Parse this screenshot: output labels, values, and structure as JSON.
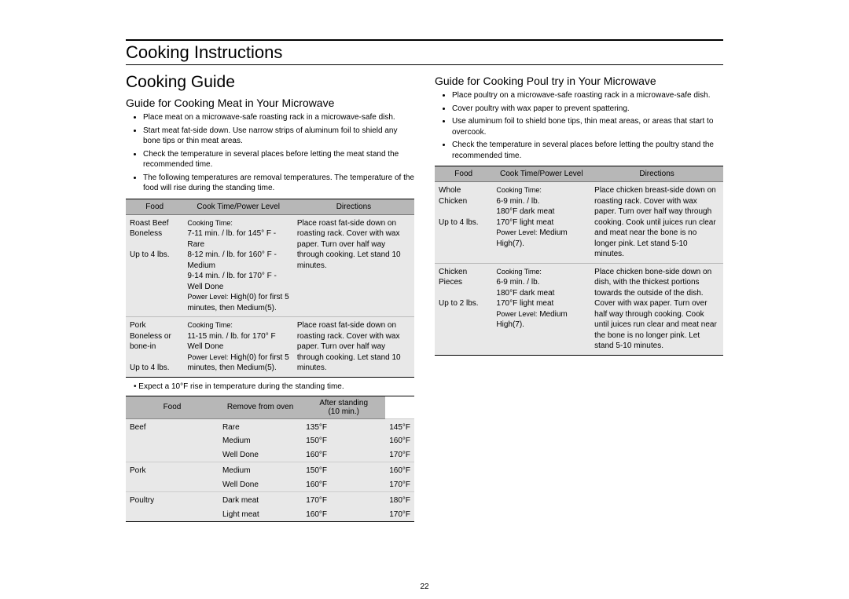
{
  "page": {
    "title": "Cooking Instructions",
    "pagenum": "22"
  },
  "left": {
    "heading": "Cooking Guide",
    "subheading": "Guide for Cooking Meat   in Your Microwave",
    "bullets": [
      "Place meat on a microwave-safe roasting rack in a microwave-safe dish.",
      "Start meat fat-side down. Use narrow strips of aluminum foil to shield any bone tips or thin meat areas.",
      "Check the temperature in several places before letting the meat stand the recommended time.",
      "The following temperatures are removal temperatures. The temperature of the food will rise during the standing time."
    ],
    "table1": {
      "headers": [
        "Food",
        "Cook Time/Power Level",
        "Directions"
      ],
      "rows": [
        {
          "food": "Roast Beef Boneless\n\nUp to 4 lbs.",
          "cook_label1": "Cooking Time:",
          "cook_body": "7-11 min. / lb. for 145° F - Rare\n8-12 min. / lb. for 160° F - Medium\n9-14 min. / lb. for 170° F - Well Done",
          "cook_label2": "Power Level:",
          "cook_power": "High(0) for first 5 minutes, then Medium(5).",
          "dir": "Place roast fat-side down on roasting rack. Cover with wax paper. Turn over  half way through cooking. Let stand 10 minutes."
        },
        {
          "food": "Pork Boneless or bone-in\n\nUp to 4 lbs.",
          "cook_label1": "Cooking Time:",
          "cook_body": "11-15 min. / lb. for 170° F Well Done",
          "cook_label2": "Power Level:",
          "cook_power": "High(0) for first 5 minutes, then Medium(5).",
          "dir": "Place roast fat-side down on roasting rack. Cover with wax paper. Turn over  half way through cooking. Let stand 10 minutes."
        }
      ]
    },
    "note": "Expect a 10°F rise in temperature during the standing time.",
    "table2": {
      "headers": [
        "Food",
        "Remove from oven",
        "After standing (10 min.)"
      ],
      "groups": [
        {
          "name": "Beef",
          "rows": [
            [
              "Rare",
              "135°F",
              "145°F"
            ],
            [
              "Medium",
              "150°F",
              "160°F"
            ],
            [
              "Well Done",
              "160°F",
              "170°F"
            ]
          ]
        },
        {
          "name": "Pork",
          "rows": [
            [
              "Medium",
              "150°F",
              "160°F"
            ],
            [
              "Well Done",
              "160°F",
              "170°F"
            ]
          ]
        },
        {
          "name": "Poultry",
          "rows": [
            [
              "Dark meat",
              "170°F",
              "180°F"
            ],
            [
              "Light meat",
              "160°F",
              "170°F"
            ]
          ]
        }
      ]
    }
  },
  "right": {
    "subheading": "Guide for Cooking Poul   try in Your Microwave",
    "bullets": [
      "Place poultry on a microwave-safe roasting rack in a microwave-safe dish.",
      "Cover poultry with wax paper to prevent spattering.",
      "Use aluminum foil to shield bone tips, thin meat areas, or areas that start to overcook.",
      "Check the temperature in several places before letting the poultry stand the recommended time."
    ],
    "table1": {
      "headers": [
        "Food",
        "Cook Time/Power Level",
        "Directions"
      ],
      "rows": [
        {
          "food": "Whole Chicken\n\nUp to 4 lbs.",
          "cook_label1": "Cooking Time:",
          "cook_body": "6-9 min. / lb.\n  180°F dark meat\n  170°F light meat",
          "cook_label2": "Power Level:",
          "cook_power": "Medium High(7).",
          "dir": "Place chicken breast-side down on roasting rack. Cover with wax paper. Turn over half way through cooking. Cook until juices run clear and meat near the bone is no longer pink. Let stand 5-10 minutes."
        },
        {
          "food": "Chicken Pieces\n\nUp to 2 lbs.",
          "cook_label1": "Cooking Time:",
          "cook_body": "6-9 min. / lb.\n  180°F dark meat\n  170°F light meat",
          "cook_label2": "Power Level:",
          "cook_power": "Medium High(7).",
          "dir": "Place chicken bone-side down on dish, with the thickest portions towards the outside of the dish. Cover with wax paper. Turn over half way through cooking. Cook until juices run clear and meat near the bone is no longer pink. Let stand 5-10 minutes."
        }
      ]
    }
  },
  "colors": {
    "header_bg": "#b7b7b7",
    "cell_bg": "#e8e8e8",
    "rule": "#000000"
  }
}
